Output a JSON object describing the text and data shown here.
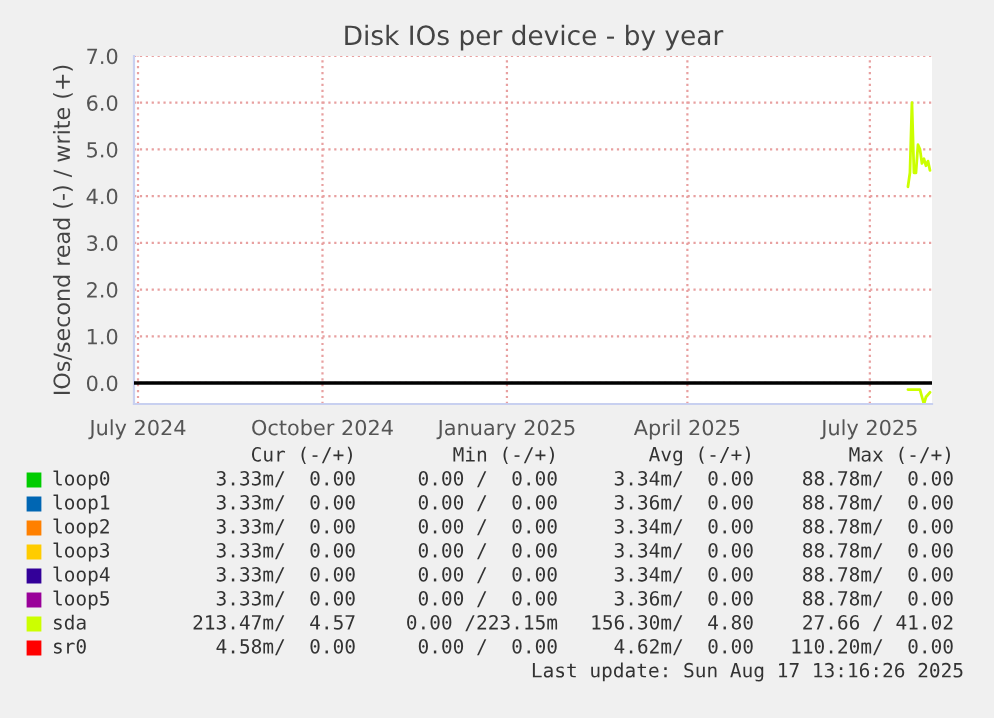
{
  "chart_data": {
    "type": "line",
    "title": "Disk IOs per device - by year",
    "ylabel": "IOs/second read (-) / write (+)",
    "xlim": [
      "2024-06-29",
      "2025-08-01"
    ],
    "xticks": [
      {
        "value": "2024-07-01",
        "label": "July 2024"
      },
      {
        "value": "2024-10-01",
        "label": "October 2024"
      },
      {
        "value": "2025-01-01",
        "label": "January 2025"
      },
      {
        "value": "2025-04-01",
        "label": "April 2025"
      },
      {
        "value": "2025-07-01",
        "label": "July 2025"
      }
    ],
    "ylim": [
      -0.45,
      7.0
    ],
    "yticks": [
      {
        "value": 0,
        "label": "0.0"
      },
      {
        "value": 1,
        "label": "1.0"
      },
      {
        "value": 2,
        "label": "2.0"
      },
      {
        "value": 3,
        "label": "3.0"
      },
      {
        "value": 4,
        "label": "4.0"
      },
      {
        "value": 5,
        "label": "5.0"
      },
      {
        "value": 6,
        "label": "6.0"
      },
      {
        "value": 7,
        "label": "7.0"
      }
    ],
    "ref_lines": [
      {
        "axis": "y",
        "value": 0,
        "color": "#000000"
      }
    ],
    "grid": true,
    "legend": "bottom",
    "series": [
      {
        "name": "loop0",
        "color": "#00cc00"
      },
      {
        "name": "loop1",
        "color": "#0066b3"
      },
      {
        "name": "loop2",
        "color": "#ff8000"
      },
      {
        "name": "loop3",
        "color": "#ffcc00"
      },
      {
        "name": "loop4",
        "color": "#330099"
      },
      {
        "name": "loop5",
        "color": "#990099"
      },
      {
        "name": "sda",
        "color": "#ccff00",
        "x": [
          "2025-07-20",
          "2025-07-21",
          "2025-07-22",
          "2025-07-23",
          "2025-07-24",
          "2025-07-25",
          "2025-07-26",
          "2025-07-27",
          "2025-07-28",
          "2025-07-29",
          "2025-07-30",
          "2025-07-31"
        ],
        "values": [
          4.2,
          4.5,
          6.0,
          4.5,
          4.5,
          5.1,
          5.0,
          4.7,
          4.8,
          4.65,
          4.75,
          4.55
        ]
      },
      {
        "name": "sr0",
        "color": "#ff0000"
      },
      {
        "color": "#ccff00",
        "x": [
          "2025-07-20",
          "2025-07-23",
          "2025-07-26",
          "2025-07-27",
          "2025-07-28",
          "2025-07-29",
          "2025-07-31"
        ],
        "values": [
          -0.14,
          -0.14,
          -0.14,
          -0.3,
          -0.45,
          -0.3,
          -0.2
        ]
      }
    ],
    "annotations": [
      "Cur (-/+)",
      "Min (-/+)",
      "Avg (-/+)",
      "Max (-/+)",
      "3.33m/  0.00",
      "0.00 /  0.00",
      "3.34m/  0.00",
      "88.78m/  0.00",
      "3.33m/  0.00",
      "0.00 /  0.00",
      "3.36m/  0.00",
      "88.78m/  0.00",
      "3.33m/  0.00",
      "0.00 /  0.00",
      "3.34m/  0.00",
      "88.78m/  0.00",
      "3.33m/  0.00",
      "0.00 /  0.00",
      "3.34m/  0.00",
      "88.78m/  0.00",
      "3.33m/  0.00",
      "0.00 /  0.00",
      "3.34m/  0.00",
      "88.78m/  0.00",
      "3.33m/  0.00",
      "0.00 /  0.00",
      "3.36m/  0.00",
      "88.78m/  0.00",
      "213.47m/  4.57",
      "0.00 /223.15m",
      "156.30m/  4.80",
      "27.66 / 41.02",
      "4.58m/  0.00",
      "0.00 /  0.00",
      "4.62m/  0.00",
      "110.20m/  0.00",
      "Last update: Sun Aug 17 13:16:26 2025"
    ]
  }
}
